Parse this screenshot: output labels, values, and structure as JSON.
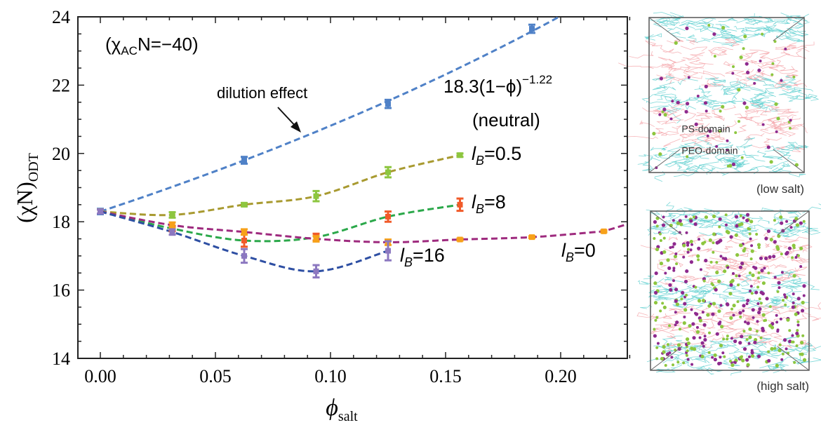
{
  "chart_data": {
    "type": "line",
    "xlabel": "ϕ",
    "xlabel_sub": "salt",
    "ylabel": "(χN)",
    "ylabel_sub": "ODT",
    "xlim": [
      -0.0075,
      0.23
    ],
    "ylim": [
      14,
      24
    ],
    "xticks": [
      "0.00",
      "0.05",
      "0.10",
      "0.15",
      "0.20"
    ],
    "yticks": [
      "14",
      "16",
      "18",
      "20",
      "22",
      "24"
    ],
    "grid": false,
    "annotations": {
      "condition_prefix": "(χ",
      "condition_sub": "AC",
      "condition_suffix": "N=−40)",
      "dilution": "dilution effect",
      "formula_base": "18.3(1−ϕ)",
      "formula_exp": "−1.22",
      "neutral": "(neutral)"
    },
    "series": [
      {
        "label_l": "l",
        "label_sub": "B",
        "label_rest": "",
        "key": "neutral",
        "line_color": "#4f81c7",
        "marker_color": "#4f81c7",
        "x": [
          0,
          0.0625,
          0.125,
          0.1875
        ],
        "y": [
          18.3,
          19.8,
          21.45,
          23.65
        ],
        "err": [
          0.08,
          0.1,
          0.12,
          0.12
        ],
        "fit": "18.3*(1-x)^-1.22"
      },
      {
        "label_l": "l",
        "label_sub": "B",
        "label_rest": "=0.5",
        "line_color": "#a89a30",
        "marker_color": "#8dc63f",
        "x": [
          0,
          0.03125,
          0.0625,
          0.09375,
          0.125,
          0.15625
        ],
        "y": [
          18.3,
          18.2,
          18.5,
          18.75,
          19.45,
          19.95
        ],
        "err": [
          0.06,
          0.08,
          0.05,
          0.15,
          0.15,
          0.05
        ]
      },
      {
        "label_l": "l",
        "label_sub": "B",
        "label_rest": "=8",
        "line_color": "#2ba84a",
        "marker_color": "#f15a29",
        "x": [
          0,
          0.03125,
          0.0625,
          0.09375,
          0.125,
          0.15625
        ],
        "y": [
          18.3,
          17.8,
          17.45,
          17.55,
          18.15,
          18.5
        ],
        "err": [
          0.06,
          0.08,
          0.18,
          0.1,
          0.15,
          0.18
        ]
      },
      {
        "label_l": "l",
        "label_sub": "B",
        "label_rest": "=0",
        "line_color": "#9e2a7e",
        "marker_color": "#f7a11a",
        "x": [
          0,
          0.03125,
          0.0625,
          0.09375,
          0.125,
          0.15625,
          0.1875,
          0.21875
        ],
        "y": [
          18.3,
          17.9,
          17.7,
          17.5,
          17.4,
          17.48,
          17.55,
          17.72
        ],
        "err": [
          0.06,
          0.08,
          0.08,
          0.08,
          0.08,
          0.03,
          0.03,
          0.03
        ]
      },
      {
        "label_l": "l",
        "label_sub": "B",
        "label_rest": "=16",
        "line_color": "#2e4fa3",
        "marker_color": "#8c78c0",
        "x": [
          0,
          0.03125,
          0.0625,
          0.09375,
          0.125
        ],
        "y": [
          18.3,
          17.7,
          17.0,
          16.55,
          17.15
        ],
        "err": [
          0.06,
          0.08,
          0.2,
          0.18,
          0.28
        ]
      }
    ]
  },
  "insets": {
    "top_label": "(low salt)",
    "bottom_label": "(high salt)",
    "ps_domain": "PS-domain",
    "peo_domain": "PEO-domain",
    "colors": {
      "ps": "#f4a3a8",
      "peo": "#5fd0d0",
      "cation": "#8dc63f",
      "anion": "#8e2a8e"
    }
  }
}
